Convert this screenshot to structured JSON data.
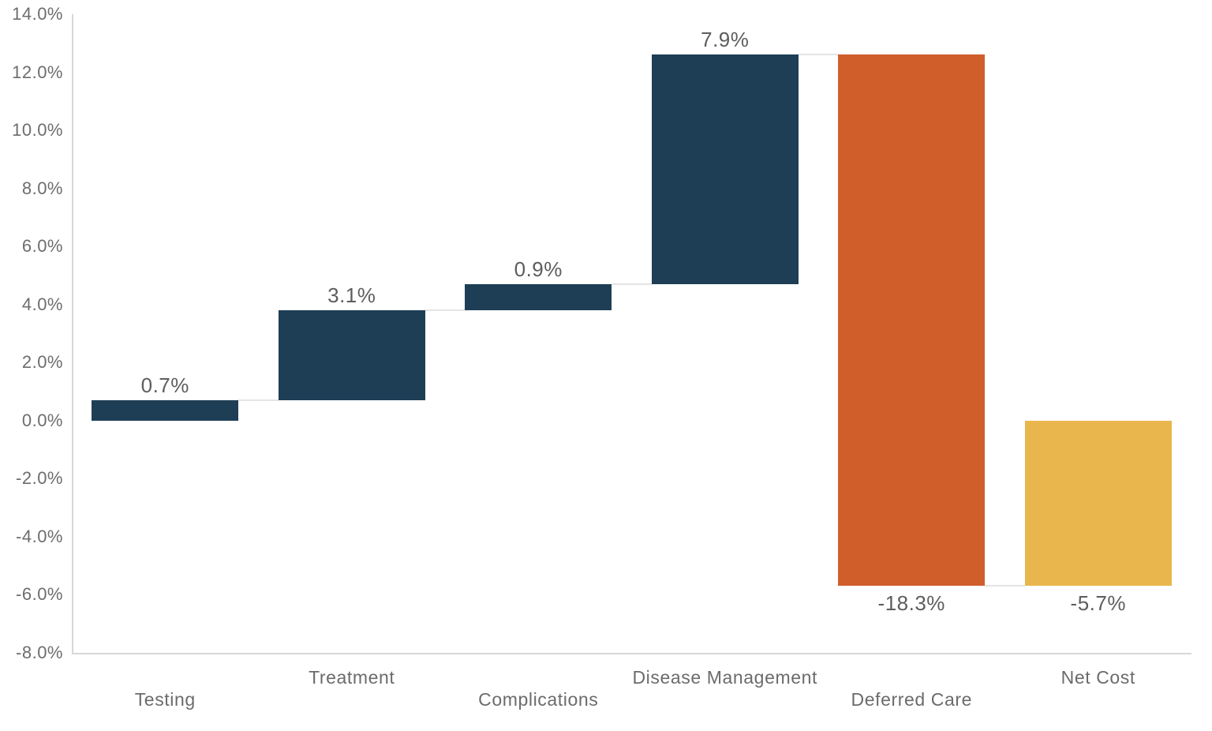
{
  "colors": {
    "increase_bar": "#1d3e55",
    "decrease_bar": "#d05e2b",
    "total_bar": "#e9b64e",
    "connector": "#e4e4e4",
    "axis_line": "#d7d7d7",
    "ytick_text": "#6d6d6d",
    "value_label_text": "#5d5d5d",
    "category_label_text": "#6b6b6b",
    "background": "#ffffff"
  },
  "chart_data": {
    "type": "bar",
    "subtype": "waterfall",
    "title": "",
    "xlabel": "",
    "ylabel": "",
    "categories": [
      "Testing",
      "Treatment",
      "Complications",
      "Disease Management",
      "Deferred Care",
      "Net Cost"
    ],
    "values": [
      0.7,
      3.1,
      0.9,
      7.9,
      -18.3,
      -5.7
    ],
    "value_labels": [
      "0.7%",
      "3.1%",
      "0.9%",
      "7.9%",
      "-18.3%",
      "-5.7%"
    ],
    "bar_roles": [
      "increase",
      "increase",
      "increase",
      "increase",
      "decrease",
      "total"
    ],
    "cumulative_start": [
      0,
      0.7,
      3.8,
      4.7,
      12.6,
      0
    ],
    "cumulative_end": [
      0.7,
      3.8,
      4.7,
      12.6,
      -5.7,
      -5.7
    ],
    "value_label_position": [
      "above",
      "above",
      "above",
      "above",
      "below",
      "below"
    ],
    "category_label_row": [
      "lower",
      "upper",
      "lower",
      "upper",
      "lower",
      "upper"
    ],
    "connector_levels": [
      0.7,
      3.8,
      4.7,
      12.6,
      -5.7
    ],
    "ylim": [
      -8,
      14
    ],
    "ytick_step": 2,
    "yticks": [
      {
        "value": 14,
        "label": "14.0%"
      },
      {
        "value": 12,
        "label": "12.0%"
      },
      {
        "value": 10,
        "label": "10.0%"
      },
      {
        "value": 8,
        "label": "8.0%"
      },
      {
        "value": 6,
        "label": "6.0%"
      },
      {
        "value": 4,
        "label": "4.0%"
      },
      {
        "value": 2,
        "label": "2.0%"
      },
      {
        "value": 0,
        "label": "0.0%"
      },
      {
        "value": -2,
        "label": "-2.0%"
      },
      {
        "value": -4,
        "label": "-4.0%"
      },
      {
        "value": -6,
        "label": "-6.0%"
      },
      {
        "value": -8,
        "label": "-8.0%"
      }
    ],
    "grid": false,
    "legend": "none"
  }
}
